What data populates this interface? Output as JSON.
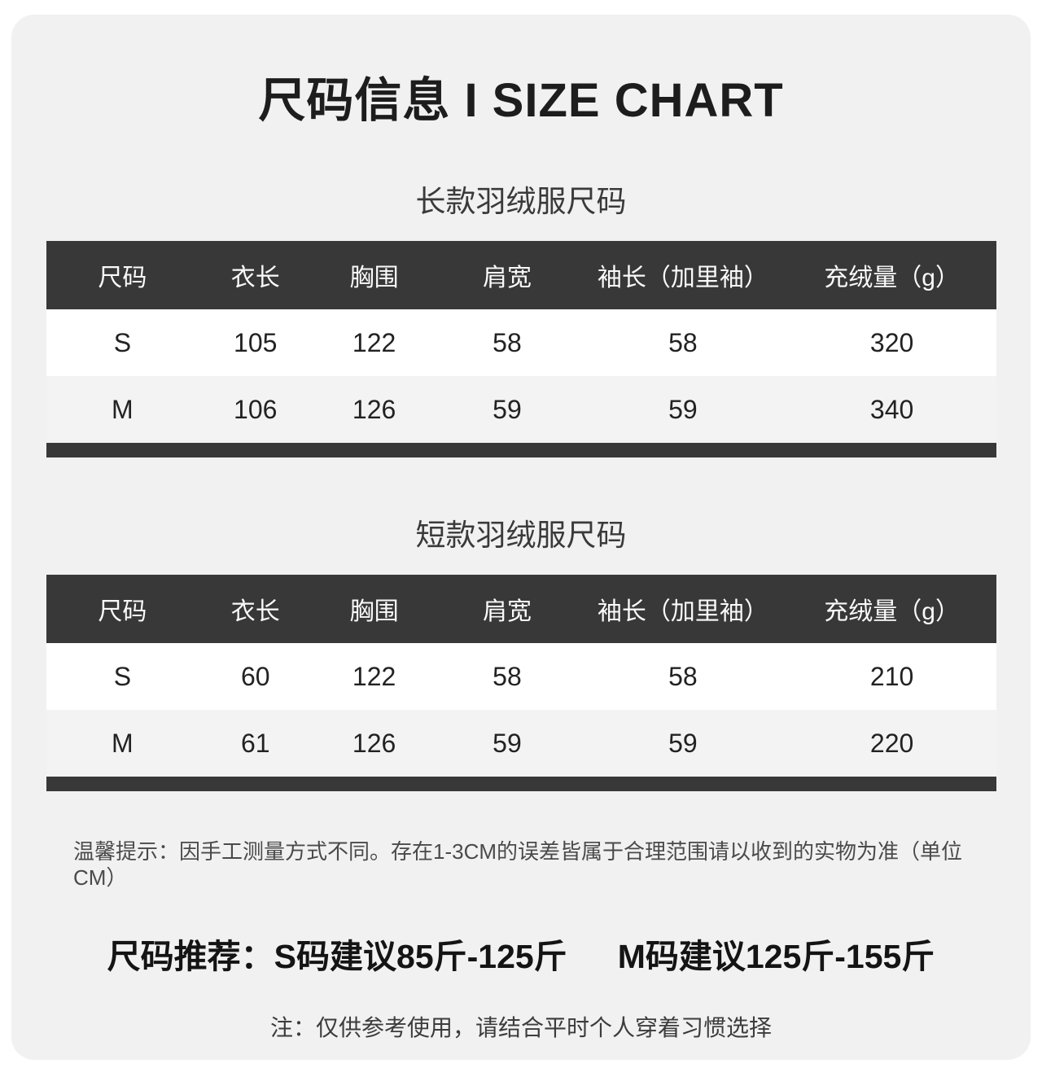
{
  "page": {
    "title": "尺码信息 I SIZE CHART",
    "measure_note": "温馨提示：因手工测量方式不同。存在1-3CM的误差皆属于合理范围请以收到的实物为准（单位CM）",
    "recommendation": {
      "label": "尺码推荐：",
      "size_s": "S码建议85斤-125斤",
      "size_m": "M码建议125斤-155斤"
    },
    "reference_note": "注：仅供参考使用，请结合平时个人穿着习惯选择"
  },
  "colors": {
    "card_background": "#f1f1f2",
    "header_background": "#383838",
    "header_text": "#fafafa",
    "row_alt_background": "#f3f3f4",
    "title_text": "#1d1d1d"
  },
  "tables": [
    {
      "subtitle": "长款羽绒服尺码",
      "headers": [
        "尺码",
        "衣长",
        "胸围",
        "肩宽",
        "袖长（加里袖）",
        "充绒量（g）"
      ],
      "rows": [
        [
          "S",
          "105",
          "122",
          "58",
          "58",
          "320"
        ],
        [
          "M",
          "106",
          "126",
          "59",
          "59",
          "340"
        ]
      ]
    },
    {
      "subtitle": "短款羽绒服尺码",
      "headers": [
        "尺码",
        "衣长",
        "胸围",
        "肩宽",
        "袖长（加里袖）",
        "充绒量（g）"
      ],
      "rows": [
        [
          "S",
          "60",
          "122",
          "58",
          "58",
          "210"
        ],
        [
          "M",
          "61",
          "126",
          "59",
          "59",
          "220"
        ]
      ]
    }
  ]
}
